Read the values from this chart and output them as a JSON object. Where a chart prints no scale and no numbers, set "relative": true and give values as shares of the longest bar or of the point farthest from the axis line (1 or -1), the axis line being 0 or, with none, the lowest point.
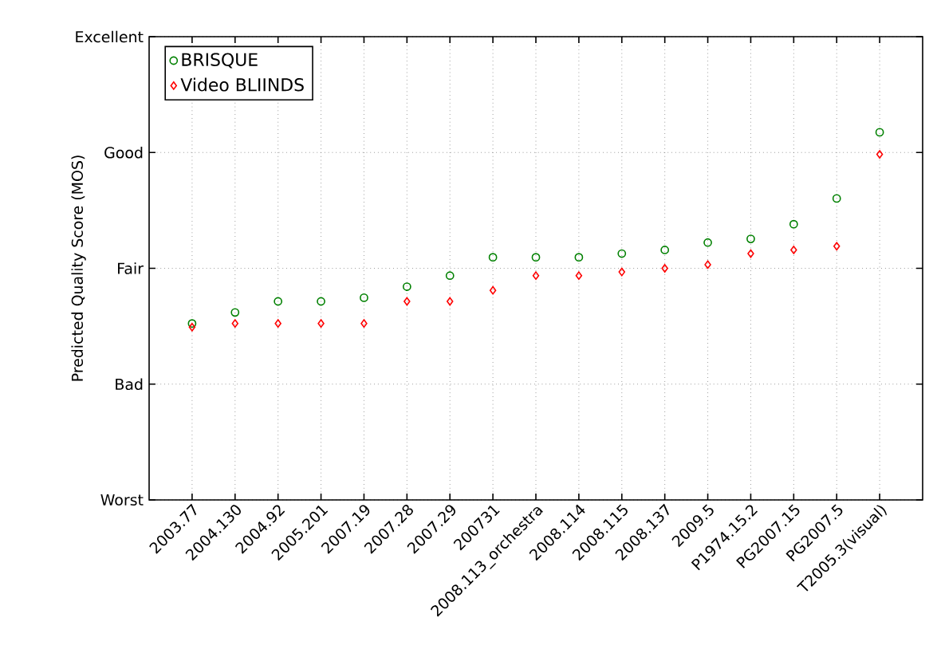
{
  "chart_data": {
    "type": "scatter",
    "ylabel": "Predicted Quality Score (MOS)",
    "relative": true,
    "categories": [
      "2003.77",
      "2004.130",
      "2004.92",
      "2005.201",
      "2007.19",
      "2007.28",
      "2007.29",
      "200731",
      "2008.113_orchestra",
      "2008.114",
      "2008.115",
      "2008.137",
      "2009.5",
      "P1974.15.2",
      "PG2007.15",
      "PG2007.5",
      "T2005.3(visual)"
    ],
    "series": [
      {
        "name": "BRISQUE",
        "color": "#008000",
        "marker": "circle",
        "values": [
          0.48,
          0.51,
          0.54,
          0.54,
          0.55,
          0.58,
          0.61,
          0.66,
          0.66,
          0.66,
          0.67,
          0.68,
          0.7,
          0.71,
          0.75,
          0.82,
          1
        ]
      },
      {
        "name": "Video BLIINDS",
        "color": "#ff0000",
        "marker": "diamond",
        "values": [
          0.47,
          0.48,
          0.48,
          0.48,
          0.48,
          0.54,
          0.54,
          0.57,
          0.61,
          0.61,
          0.62,
          0.63,
          0.64,
          0.67,
          0.68,
          0.69,
          0.94
        ]
      }
    ],
    "annotations": [
      "Worst",
      "Bad",
      "Fair",
      "Good",
      "Excellent"
    ],
    "grid": true,
    "legend": "top left"
  }
}
